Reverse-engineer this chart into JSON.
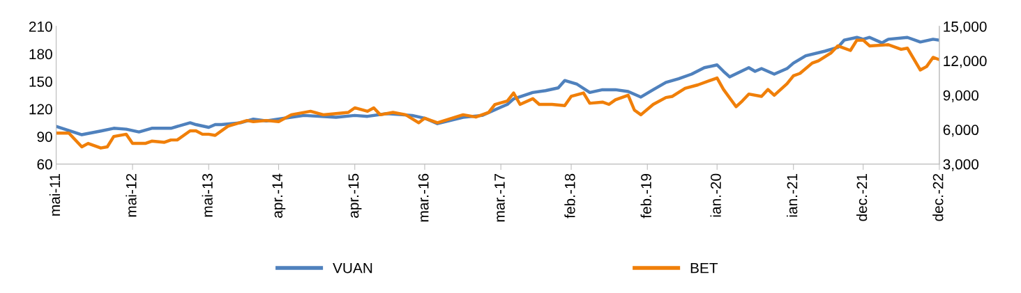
{
  "chart_data": {
    "type": "line",
    "xlim": [
      "2011-05",
      "2022-12"
    ],
    "xticks": [
      {
        "value": "2011-05",
        "label": "mai-11"
      },
      {
        "value": "2012-05",
        "label": "mai-12"
      },
      {
        "value": "2013-05",
        "label": "mai-13"
      },
      {
        "value": "2014-04",
        "label": "apr.-14"
      },
      {
        "value": "2015-04",
        "label": "apr.-15"
      },
      {
        "value": "2016-03",
        "label": "mar.-16"
      },
      {
        "value": "2017-03",
        "label": "mar.-17"
      },
      {
        "value": "2018-02",
        "label": "feb.-18"
      },
      {
        "value": "2019-02",
        "label": "feb.-19"
      },
      {
        "value": "2020-01",
        "label": "ian.-20"
      },
      {
        "value": "2021-01",
        "label": "ian.-21"
      },
      {
        "value": "2021-12",
        "label": "dec.-21"
      },
      {
        "value": "2022-12",
        "label": "dec.-22"
      }
    ],
    "ylim": [
      60,
      210
    ],
    "yticks": [
      60,
      90,
      120,
      150,
      180,
      210
    ],
    "y2lim": [
      3000,
      15000
    ],
    "y2ticks": [
      {
        "value": 3000,
        "label": "3,000"
      },
      {
        "value": 6000,
        "label": "6,000"
      },
      {
        "value": 9000,
        "label": "9,000"
      },
      {
        "value": 12000,
        "label": "12,000"
      },
      {
        "value": 15000,
        "label": "15,000"
      }
    ],
    "grid": false,
    "legend": "bottom",
    "marker": "none",
    "line_style": "solid",
    "series": [
      {
        "name": "VUAN",
        "color": "#4f81bd",
        "x": [
          "2011-05",
          "2011-09",
          "2011-12",
          "2012-02",
          "2012-04",
          "2012-06",
          "2012-08",
          "2012-11",
          "2013-02",
          "2013-03",
          "2013-05",
          "2013-06",
          "2013-07",
          "2013-10",
          "2013-12",
          "2014-02",
          "2014-05",
          "2014-08",
          "2015-01",
          "2015-04",
          "2015-06",
          "2015-09",
          "2016-01",
          "2016-03",
          "2016-05",
          "2016-09",
          "2016-12",
          "2017-03",
          "2017-04",
          "2017-05",
          "2017-08",
          "2017-10",
          "2017-12",
          "2018-01",
          "2018-03",
          "2018-05",
          "2018-07",
          "2018-09",
          "2018-11",
          "2019-01",
          "2019-03",
          "2019-05",
          "2019-07",
          "2019-09",
          "2019-11",
          "2020-01",
          "2020-02",
          "2020-03",
          "2020-06",
          "2020-07",
          "2020-08",
          "2020-10",
          "2020-12",
          "2021-01",
          "2021-03",
          "2021-06",
          "2021-08",
          "2021-09",
          "2021-11",
          "2021-12",
          "2022-01",
          "2022-03",
          "2022-04",
          "2022-07",
          "2022-09",
          "2022-11",
          "2022-12"
        ],
        "values": [
          101,
          92,
          96,
          99,
          98,
          95,
          99,
          99,
          105,
          103,
          100,
          103,
          103,
          105,
          109,
          107,
          110,
          113,
          111,
          113,
          112,
          115,
          113,
          110,
          104,
          111,
          113,
          122,
          125,
          131,
          138,
          140,
          143,
          151,
          147,
          138,
          141,
          141,
          139,
          133,
          141,
          149,
          153,
          158,
          165,
          168,
          161,
          155,
          165,
          161,
          164,
          158,
          164,
          170,
          178,
          183,
          187,
          195,
          198,
          196,
          198,
          192,
          196,
          198,
          193,
          196,
          195
        ]
      },
      {
        "name": "BET",
        "color": "#f07f09",
        "axis": "y2",
        "x": [
          "2011-05",
          "2011-07",
          "2011-09",
          "2011-10",
          "2011-12",
          "2012-01",
          "2012-02",
          "2012-04",
          "2012-05",
          "2012-07",
          "2012-08",
          "2012-10",
          "2012-11",
          "2012-12",
          "2013-02",
          "2013-03",
          "2013-04",
          "2013-05",
          "2013-06",
          "2013-08",
          "2013-11",
          "2013-12",
          "2014-02",
          "2014-04",
          "2014-06",
          "2014-09",
          "2014-11",
          "2015-01",
          "2015-03",
          "2015-04",
          "2015-06",
          "2015-07",
          "2015-08",
          "2015-10",
          "2015-12",
          "2016-02",
          "2016-03",
          "2016-05",
          "2016-09",
          "2016-11",
          "2017-01",
          "2017-02",
          "2017-04",
          "2017-05",
          "2017-06",
          "2017-08",
          "2017-09",
          "2017-11",
          "2018-01",
          "2018-02",
          "2018-04",
          "2018-05",
          "2018-07",
          "2018-08",
          "2018-09",
          "2018-11",
          "2018-12",
          "2019-01",
          "2019-03",
          "2019-05",
          "2019-06",
          "2019-08",
          "2019-10",
          "2019-12",
          "2020-01",
          "2020-02",
          "2020-04",
          "2020-05",
          "2020-06",
          "2020-08",
          "2020-09",
          "2020-10",
          "2020-12",
          "2021-01",
          "2021-02",
          "2021-04",
          "2021-05",
          "2021-07",
          "2021-08",
          "2021-10",
          "2021-11",
          "2021-12",
          "2022-01",
          "2022-04",
          "2022-06",
          "2022-07",
          "2022-09",
          "2022-10",
          "2022-11",
          "2022-12"
        ],
        "values": [
          5700,
          5700,
          4500,
          4800,
          4400,
          4500,
          5400,
          5600,
          4800,
          4800,
          5000,
          4900,
          5100,
          5100,
          5900,
          5900,
          5600,
          5600,
          5500,
          6300,
          6800,
          6700,
          6800,
          6700,
          7300,
          7600,
          7300,
          7400,
          7500,
          7900,
          7600,
          7900,
          7300,
          7500,
          7300,
          6600,
          7000,
          6600,
          7300,
          7100,
          7500,
          8200,
          8500,
          9200,
          8200,
          8700,
          8200,
          8200,
          8100,
          8900,
          9200,
          8300,
          8400,
          8200,
          8600,
          9000,
          7700,
          7300,
          8200,
          8800,
          8900,
          9600,
          9900,
          10300,
          10500,
          9500,
          8000,
          8500,
          9100,
          8900,
          9500,
          9000,
          10000,
          10700,
          10900,
          11800,
          12000,
          12700,
          13300,
          12900,
          13800,
          13800,
          13300,
          13400,
          13000,
          13100,
          11200,
          11500,
          12300,
          12100
        ]
      }
    ]
  }
}
